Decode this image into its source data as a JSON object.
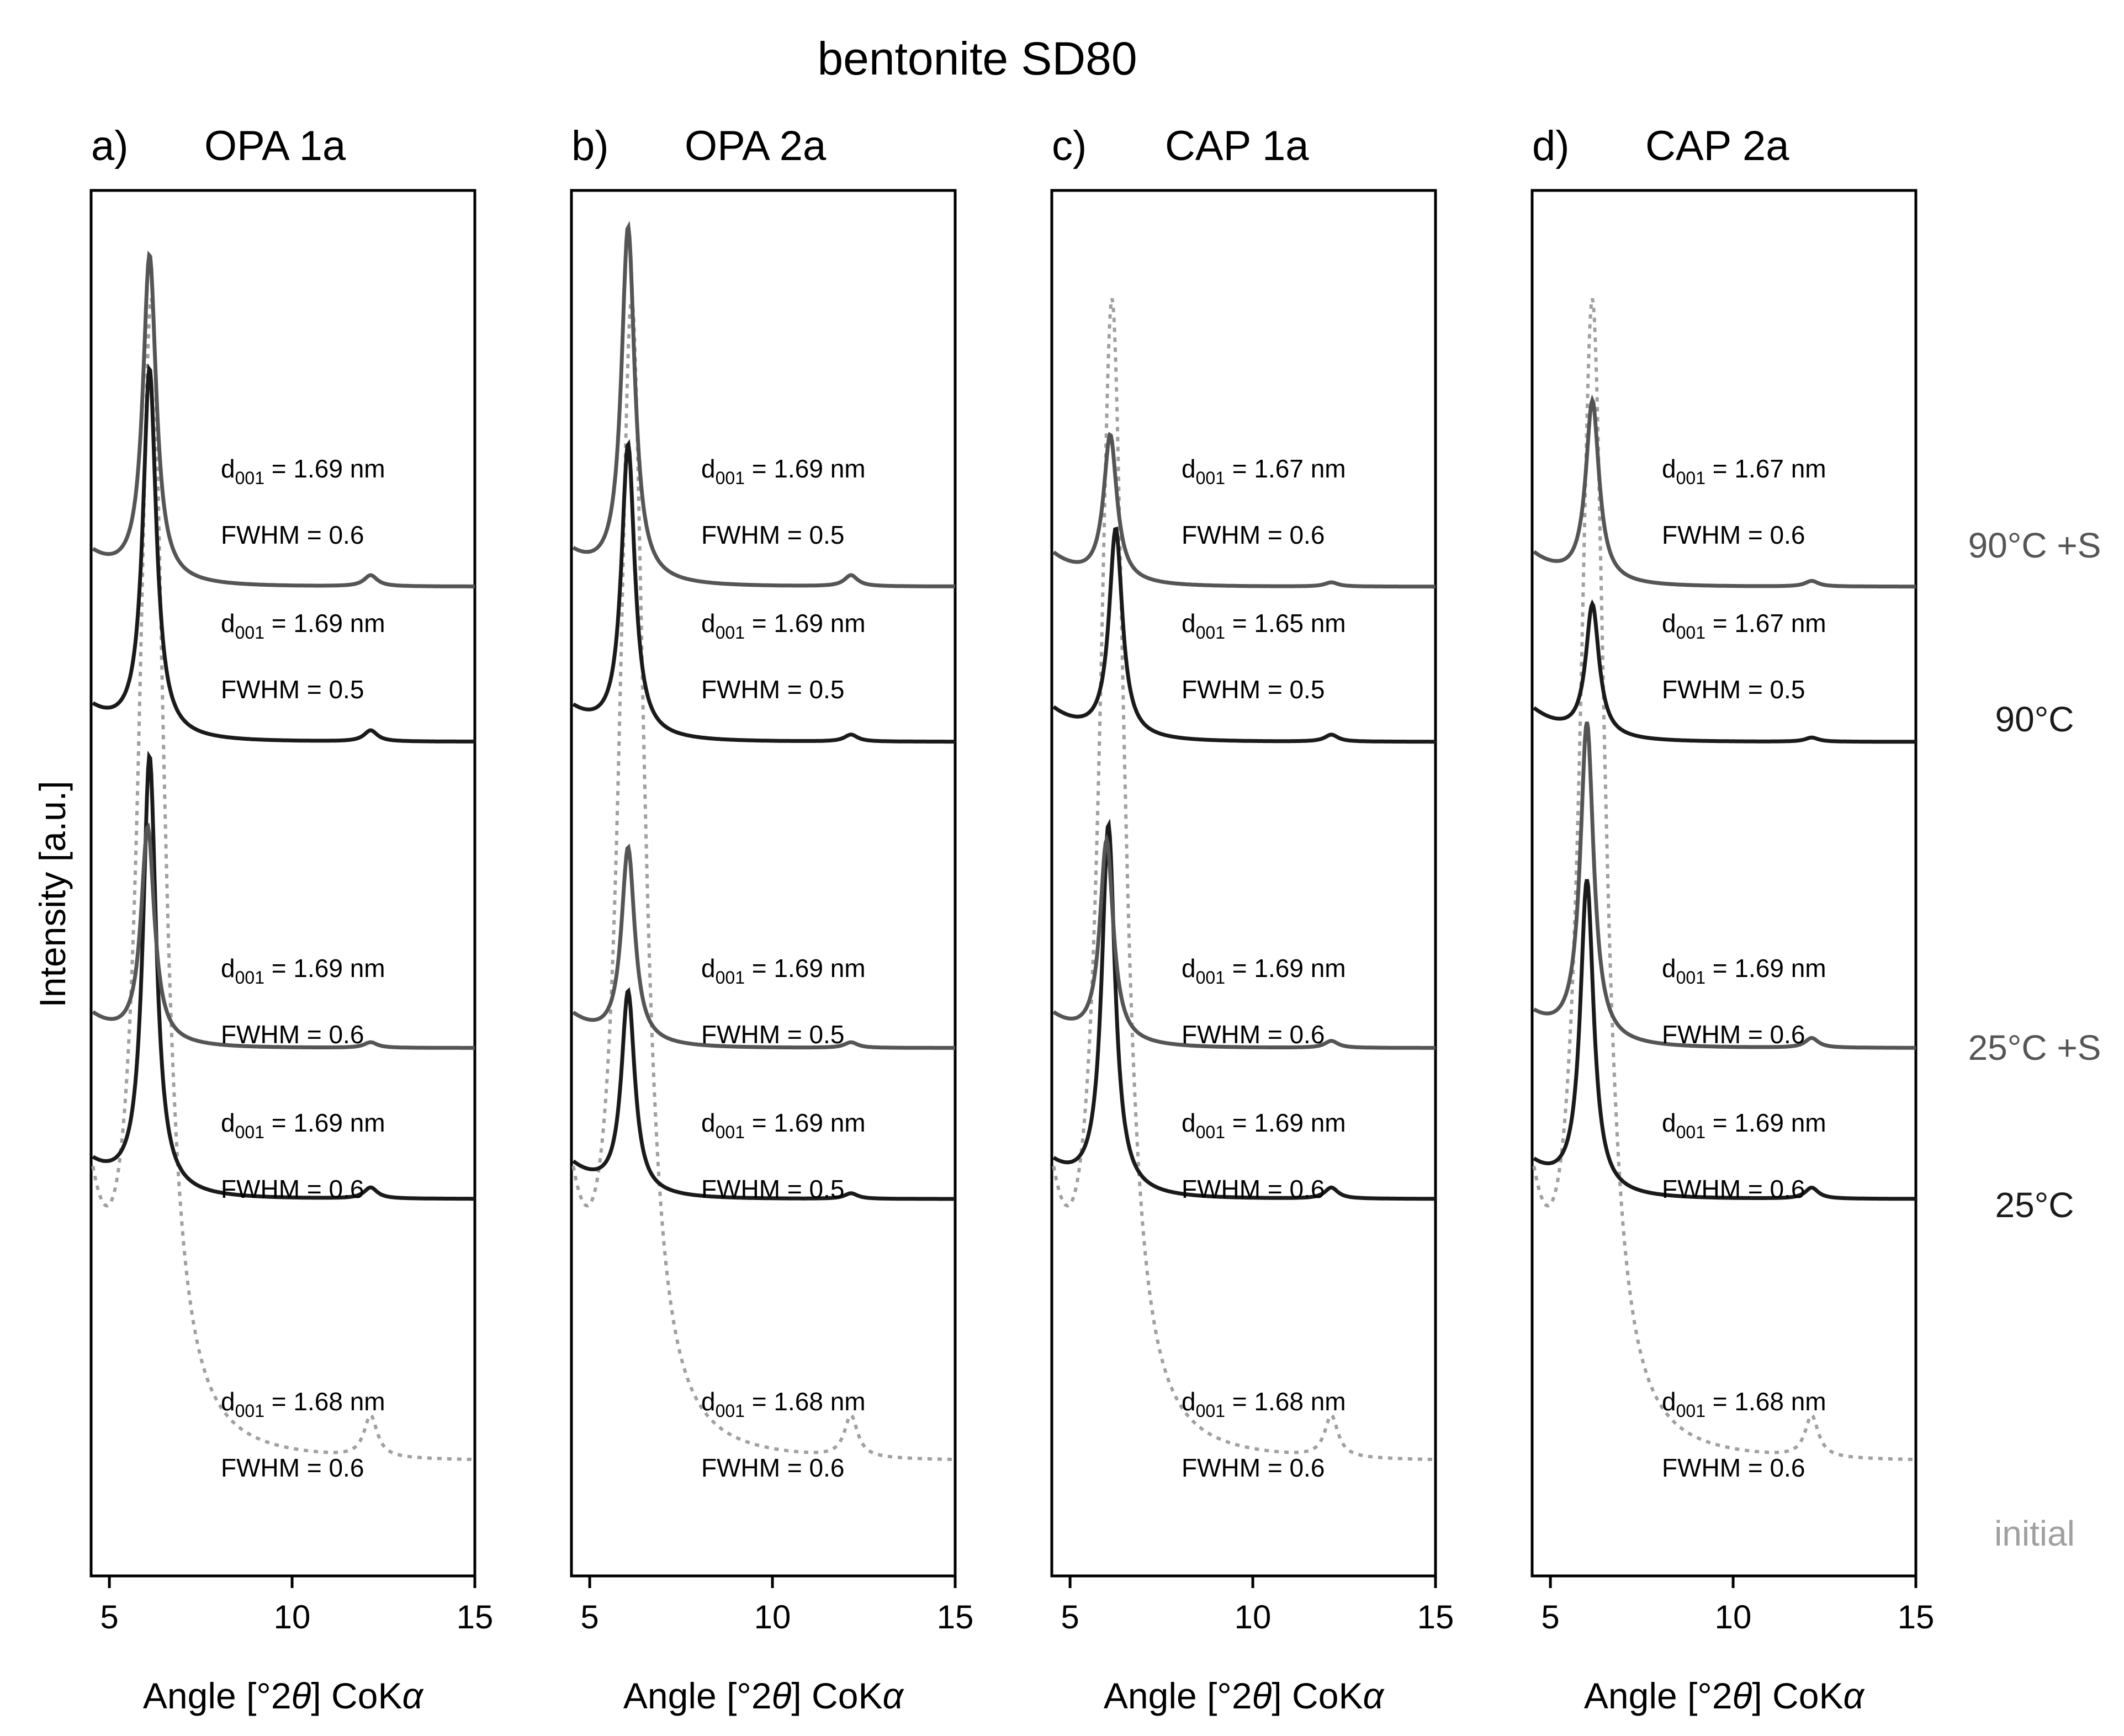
{
  "chart_data": {
    "type": "line",
    "title": "bentonite SD80",
    "ylabel": "Intensity [a.u.]",
    "xlabel": "Angle [°2θ] CoKα",
    "xlim": [
      4.5,
      15
    ],
    "xticks": [
      "5",
      "10",
      "15"
    ],
    "xtick_values": [
      5,
      10,
      15
    ],
    "series_labels": [
      {
        "key": "90S",
        "label": "90°C +S",
        "color": "#555555"
      },
      {
        "key": "90",
        "label": "90°C",
        "color": "#1a1a1a"
      },
      {
        "key": "25S",
        "label": "25°C +S",
        "color": "#555555"
      },
      {
        "key": "25",
        "label": "25°C",
        "color": "#1a1a1a"
      },
      {
        "key": "init",
        "label": "initial",
        "color": "#a0a0a0"
      }
    ],
    "panels": [
      {
        "letter": "a)",
        "name": "OPA 1a",
        "series": {
          "90S": {
            "peak": 6.1,
            "height": 0.235,
            "secondary": 0.008,
            "d001": "1.69",
            "fwhm": "0.6"
          },
          "90": {
            "peak": 6.1,
            "height": 0.265,
            "secondary": 0.008,
            "d001": "1.69",
            "fwhm": "0.5"
          },
          "25S": {
            "peak": 6.05,
            "height": 0.155,
            "secondary": 0.004,
            "d001": "1.69",
            "fwhm": "0.6"
          },
          "25": {
            "peak": 6.1,
            "height": 0.315,
            "secondary": 0.008,
            "d001": "1.69",
            "fwhm": "0.6"
          },
          "init": {
            "peak": 6.15,
            "height": 0.82,
            "secondary": 0.03,
            "d001": "1.68",
            "fwhm": "0.6"
          }
        }
      },
      {
        "letter": "b)",
        "name": "OPA 2a",
        "series": {
          "90S": {
            "peak": 6.05,
            "height": 0.255,
            "secondary": 0.008,
            "d001": "1.69",
            "fwhm": "0.5"
          },
          "90": {
            "peak": 6.05,
            "height": 0.21,
            "secondary": 0.005,
            "d001": "1.69",
            "fwhm": "0.5"
          },
          "25S": {
            "peak": 6.05,
            "height": 0.14,
            "secondary": 0.004,
            "d001": "1.69",
            "fwhm": "0.5"
          },
          "25": {
            "peak": 6.05,
            "height": 0.145,
            "secondary": 0.004,
            "d001": "1.69",
            "fwhm": "0.5"
          },
          "init": {
            "peak": 6.15,
            "height": 0.82,
            "secondary": 0.03,
            "d001": "1.68",
            "fwhm": "0.6"
          }
        }
      },
      {
        "letter": "c)",
        "name": "CAP 1a",
        "series": {
          "90S": {
            "peak": 6.1,
            "height": 0.105,
            "secondary": 0.003,
            "d001": "1.67",
            "fwhm": "0.6"
          },
          "90": {
            "peak": 6.25,
            "height": 0.15,
            "secondary": 0.005,
            "d001": "1.65",
            "fwhm": "0.5"
          },
          "25S": {
            "peak": 6.0,
            "height": 0.145,
            "secondary": 0.005,
            "d001": "1.69",
            "fwhm": "0.6"
          },
          "25": {
            "peak": 6.05,
            "height": 0.265,
            "secondary": 0.008,
            "d001": "1.69",
            "fwhm": "0.6"
          },
          "init": {
            "peak": 6.15,
            "height": 0.82,
            "secondary": 0.03,
            "d001": "1.68",
            "fwhm": "0.6"
          }
        }
      },
      {
        "letter": "d)",
        "name": "CAP 2a",
        "series": {
          "90S": {
            "peak": 6.15,
            "height": 0.13,
            "secondary": 0.004,
            "d001": "1.67",
            "fwhm": "0.6"
          },
          "90": {
            "peak": 6.15,
            "height": 0.095,
            "secondary": 0.003,
            "d001": "1.67",
            "fwhm": "0.5"
          },
          "25S": {
            "peak": 6.0,
            "height": 0.23,
            "secondary": 0.007,
            "d001": "1.69",
            "fwhm": "0.6"
          },
          "25": {
            "peak": 6.0,
            "height": 0.225,
            "secondary": 0.008,
            "d001": "1.69",
            "fwhm": "0.6"
          },
          "init": {
            "peak": 6.15,
            "height": 0.82,
            "secondary": 0.03,
            "d001": "1.68",
            "fwhm": "0.6"
          }
        }
      }
    ],
    "annotation_format": {
      "d_prefix": "d",
      "d_sub": "001",
      "d_eq": " = ",
      "d_unit": " nm",
      "fwhm_prefix": "FWHM = "
    }
  }
}
